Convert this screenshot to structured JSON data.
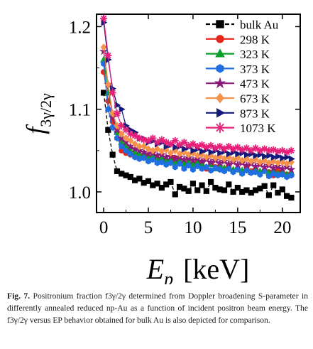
{
  "chart_data": {
    "type": "scatter",
    "xlabel": "E_p  [keV]",
    "ylabel": "f_3γ/2γ",
    "xlim": [
      -0.8,
      22
    ],
    "ylim": [
      0.975,
      1.215
    ],
    "xticks": [
      "0",
      "5",
      "10",
      "15",
      "20"
    ],
    "yticks": [
      "1.0",
      "1.1",
      "1.2"
    ],
    "legend_position": "top-right",
    "series": [
      {
        "name": "bulk Au",
        "color": "#000000",
        "marker": "square",
        "line": "dashed",
        "x": [
          0,
          0.5,
          1,
          1.5,
          2,
          2.5,
          3,
          3.5,
          4,
          4.5,
          5,
          5.5,
          6,
          6.5,
          7,
          7.5,
          8,
          8.5,
          9,
          9.5,
          10,
          10.5,
          11,
          11.5,
          12,
          12.5,
          13,
          13.5,
          14,
          14.5,
          15,
          15.5,
          16,
          16.5,
          17,
          17.5,
          18,
          18.5,
          19,
          19.5,
          20,
          20.5,
          21
        ],
        "y": [
          1.12,
          1.075,
          1.045,
          1.025,
          1.022,
          1.02,
          1.018,
          1.014,
          1.016,
          1.011,
          1.013,
          1.008,
          1.01,
          1.005,
          1.009,
          1.012,
          0.997,
          1.006,
          1.004,
          1.001,
          1.01,
          1.002,
          1.008,
          1.001,
          1.012,
          1.005,
          1.003,
          1.002,
          1.009,
          1.0,
          1.005,
          1.0,
          1.002,
          0.999,
          1.002,
          1.004,
          1.007,
          0.996,
          1.008,
          0.999,
          1.003,
          0.995,
          0.993
        ]
      },
      {
        "name": "298 K",
        "color": "#e8251b",
        "marker": "circle",
        "line": "solid",
        "x": [
          0,
          0.5,
          1,
          1.5,
          2,
          2.5,
          3,
          3.5,
          4,
          4.5,
          5,
          5.5,
          6,
          6.5,
          7,
          7.5,
          8,
          8.5,
          9,
          9.5,
          10,
          10.5,
          11,
          11.5,
          12,
          12.5,
          13,
          13.5,
          14,
          14.5,
          15,
          15.5,
          16,
          16.5,
          17,
          17.5,
          18,
          18.5,
          19,
          19.5,
          20,
          20.5,
          21
        ],
        "y": [
          1.145,
          1.11,
          1.085,
          1.072,
          1.05,
          1.047,
          1.045,
          1.045,
          1.041,
          1.044,
          1.039,
          1.043,
          1.038,
          1.04,
          1.037,
          1.036,
          1.041,
          1.035,
          1.032,
          1.04,
          1.03,
          1.035,
          1.036,
          1.028,
          1.034,
          1.03,
          1.031,
          1.026,
          1.032,
          1.025,
          1.028,
          1.023,
          1.03,
          1.025,
          1.027,
          1.022,
          1.026,
          1.024,
          1.02,
          1.026,
          1.023,
          1.021,
          1.02
        ]
      },
      {
        "name": "323 K",
        "color": "#0a9e2a",
        "marker": "triangle-up",
        "line": "solid",
        "x": [
          0,
          0.5,
          1,
          1.5,
          2,
          2.5,
          3,
          3.5,
          4,
          4.5,
          5,
          5.5,
          6,
          6.5,
          7,
          7.5,
          8,
          8.5,
          9,
          9.5,
          10,
          10.5,
          11,
          11.5,
          12,
          12.5,
          13,
          13.5,
          14,
          14.5,
          15,
          15.5,
          16,
          16.5,
          17,
          17.5,
          18,
          18.5,
          19,
          19.5,
          20,
          20.5,
          21
        ],
        "y": [
          1.16,
          1.12,
          1.095,
          1.072,
          1.06,
          1.055,
          1.05,
          1.048,
          1.045,
          1.046,
          1.042,
          1.044,
          1.04,
          1.041,
          1.038,
          1.04,
          1.036,
          1.038,
          1.034,
          1.036,
          1.033,
          1.035,
          1.034,
          1.03,
          1.033,
          1.028,
          1.031,
          1.029,
          1.03,
          1.027,
          1.029,
          1.026,
          1.028,
          1.024,
          1.026,
          1.025,
          1.027,
          1.023,
          1.025,
          1.022,
          1.024,
          1.021,
          1.023
        ]
      },
      {
        "name": "373 K",
        "color": "#1f6fe0",
        "marker": "hexagon",
        "line": "solid",
        "x": [
          0,
          0.5,
          1,
          1.5,
          2,
          2.5,
          3,
          3.5,
          4,
          4.5,
          5,
          5.5,
          6,
          6.5,
          7,
          7.5,
          8,
          8.5,
          9,
          9.5,
          10,
          10.5,
          11,
          11.5,
          12,
          12.5,
          13,
          13.5,
          14,
          14.5,
          15,
          15.5,
          16,
          16.5,
          17,
          17.5,
          18,
          18.5,
          19,
          19.5,
          20,
          20.5,
          21
        ],
        "y": [
          1.155,
          1.1,
          1.078,
          1.065,
          1.055,
          1.05,
          1.046,
          1.042,
          1.04,
          1.041,
          1.037,
          1.039,
          1.035,
          1.036,
          1.033,
          1.035,
          1.03,
          1.034,
          1.028,
          1.032,
          1.027,
          1.031,
          1.028,
          1.03,
          1.026,
          1.029,
          1.027,
          1.025,
          1.028,
          1.024,
          1.027,
          1.022,
          1.026,
          1.023,
          1.024,
          1.021,
          1.025,
          1.019,
          1.022,
          1.02,
          1.021,
          1.018,
          1.02
        ]
      },
      {
        "name": "473 K",
        "color": "#8b1a7c",
        "marker": "star",
        "line": "solid",
        "x": [
          0,
          0.5,
          1,
          1.5,
          2,
          2.5,
          3,
          3.5,
          4,
          4.5,
          5,
          5.5,
          6,
          6.5,
          7,
          7.5,
          8,
          8.5,
          9,
          9.5,
          10,
          10.5,
          11,
          11.5,
          12,
          12.5,
          13,
          13.5,
          14,
          14.5,
          15,
          15.5,
          16,
          16.5,
          17,
          17.5,
          18,
          18.5,
          19,
          19.5,
          20,
          20.5,
          21
        ],
        "y": [
          1.17,
          1.13,
          1.09,
          1.075,
          1.065,
          1.06,
          1.055,
          1.052,
          1.05,
          1.048,
          1.046,
          1.047,
          1.044,
          1.045,
          1.042,
          1.043,
          1.04,
          1.042,
          1.039,
          1.041,
          1.038,
          1.04,
          1.037,
          1.039,
          1.036,
          1.038,
          1.035,
          1.037,
          1.034,
          1.036,
          1.033,
          1.035,
          1.032,
          1.034,
          1.031,
          1.033,
          1.03,
          1.032,
          1.029,
          1.031,
          1.028,
          1.03,
          1.027
        ]
      },
      {
        "name": "673 K",
        "color": "#f5914a",
        "marker": "diamond",
        "line": "solid",
        "x": [
          0,
          0.5,
          1,
          1.5,
          2,
          2.5,
          3,
          3.5,
          4,
          4.5,
          5,
          5.5,
          6,
          6.5,
          7,
          7.5,
          8,
          8.5,
          9,
          9.5,
          10,
          10.5,
          11,
          11.5,
          12,
          12.5,
          13,
          13.5,
          14,
          14.5,
          15,
          15.5,
          16,
          16.5,
          17,
          17.5,
          18,
          18.5,
          19,
          19.5,
          20,
          20.5,
          21
        ],
        "y": [
          1.175,
          1.13,
          1.095,
          1.08,
          1.07,
          1.065,
          1.062,
          1.058,
          1.055,
          1.055,
          1.052,
          1.05,
          1.052,
          1.049,
          1.051,
          1.047,
          1.05,
          1.046,
          1.048,
          1.045,
          1.047,
          1.044,
          1.045,
          1.042,
          1.044,
          1.041,
          1.043,
          1.04,
          1.042,
          1.039,
          1.041,
          1.038,
          1.04,
          1.037,
          1.039,
          1.036,
          1.038,
          1.035,
          1.037,
          1.035,
          1.036,
          1.034,
          1.036
        ]
      },
      {
        "name": "873 K",
        "color": "#141a7a",
        "marker": "triangle-right",
        "line": "solid",
        "x": [
          0,
          0.5,
          1,
          1.5,
          2,
          2.5,
          3,
          3.5,
          4,
          4.5,
          5,
          5.5,
          6,
          6.5,
          7,
          7.5,
          8,
          8.5,
          9,
          9.5,
          10,
          10.5,
          11,
          11.5,
          12,
          12.5,
          13,
          13.5,
          14,
          14.5,
          15,
          15.5,
          16,
          16.5,
          17,
          17.5,
          18,
          18.5,
          19,
          19.5,
          20,
          20.5,
          21
        ],
        "y": [
          1.205,
          1.16,
          1.125,
          1.105,
          1.1,
          1.08,
          1.075,
          1.072,
          1.065,
          1.064,
          1.06,
          1.062,
          1.058,
          1.06,
          1.055,
          1.057,
          1.054,
          1.055,
          1.052,
          1.054,
          1.05,
          1.052,
          1.049,
          1.051,
          1.048,
          1.05,
          1.047,
          1.049,
          1.046,
          1.048,
          1.046,
          1.047,
          1.045,
          1.046,
          1.044,
          1.045,
          1.043,
          1.044,
          1.042,
          1.043,
          1.041,
          1.042,
          1.04
        ]
      },
      {
        "name": "1073 K",
        "color": "#e8207a",
        "marker": "asterisk",
        "line": "solid",
        "x": [
          0,
          0.5,
          1,
          1.5,
          2,
          2.5,
          3,
          3.5,
          4,
          4.5,
          5,
          5.5,
          6,
          6.5,
          7,
          7.5,
          8,
          8.5,
          9,
          9.5,
          10,
          10.5,
          11,
          11.5,
          12,
          12.5,
          13,
          13.5,
          14,
          14.5,
          15,
          15.5,
          16,
          16.5,
          17,
          17.5,
          18,
          18.5,
          19,
          19.5,
          20,
          20.5,
          21
        ],
        "y": [
          1.21,
          1.165,
          1.12,
          1.095,
          1.08,
          1.075,
          1.07,
          1.068,
          1.065,
          1.063,
          1.062,
          1.065,
          1.06,
          1.063,
          1.06,
          1.058,
          1.062,
          1.057,
          1.06,
          1.056,
          1.058,
          1.055,
          1.057,
          1.054,
          1.056,
          1.053,
          1.055,
          1.052,
          1.055,
          1.052,
          1.054,
          1.051,
          1.053,
          1.05,
          1.053,
          1.05,
          1.052,
          1.05,
          1.051,
          1.049,
          1.05,
          1.048,
          1.05
        ]
      }
    ]
  },
  "caption": {
    "label": "Fig. 7.",
    "text": " Positronium fraction f3γ/2γ determined from Doppler broadening S-parameter in differently annealed reduced np-Au as a function of incident positron beam energy. The f3γ/2γ versus EP behavior obtained for bulk Au is also depicted for comparison."
  }
}
